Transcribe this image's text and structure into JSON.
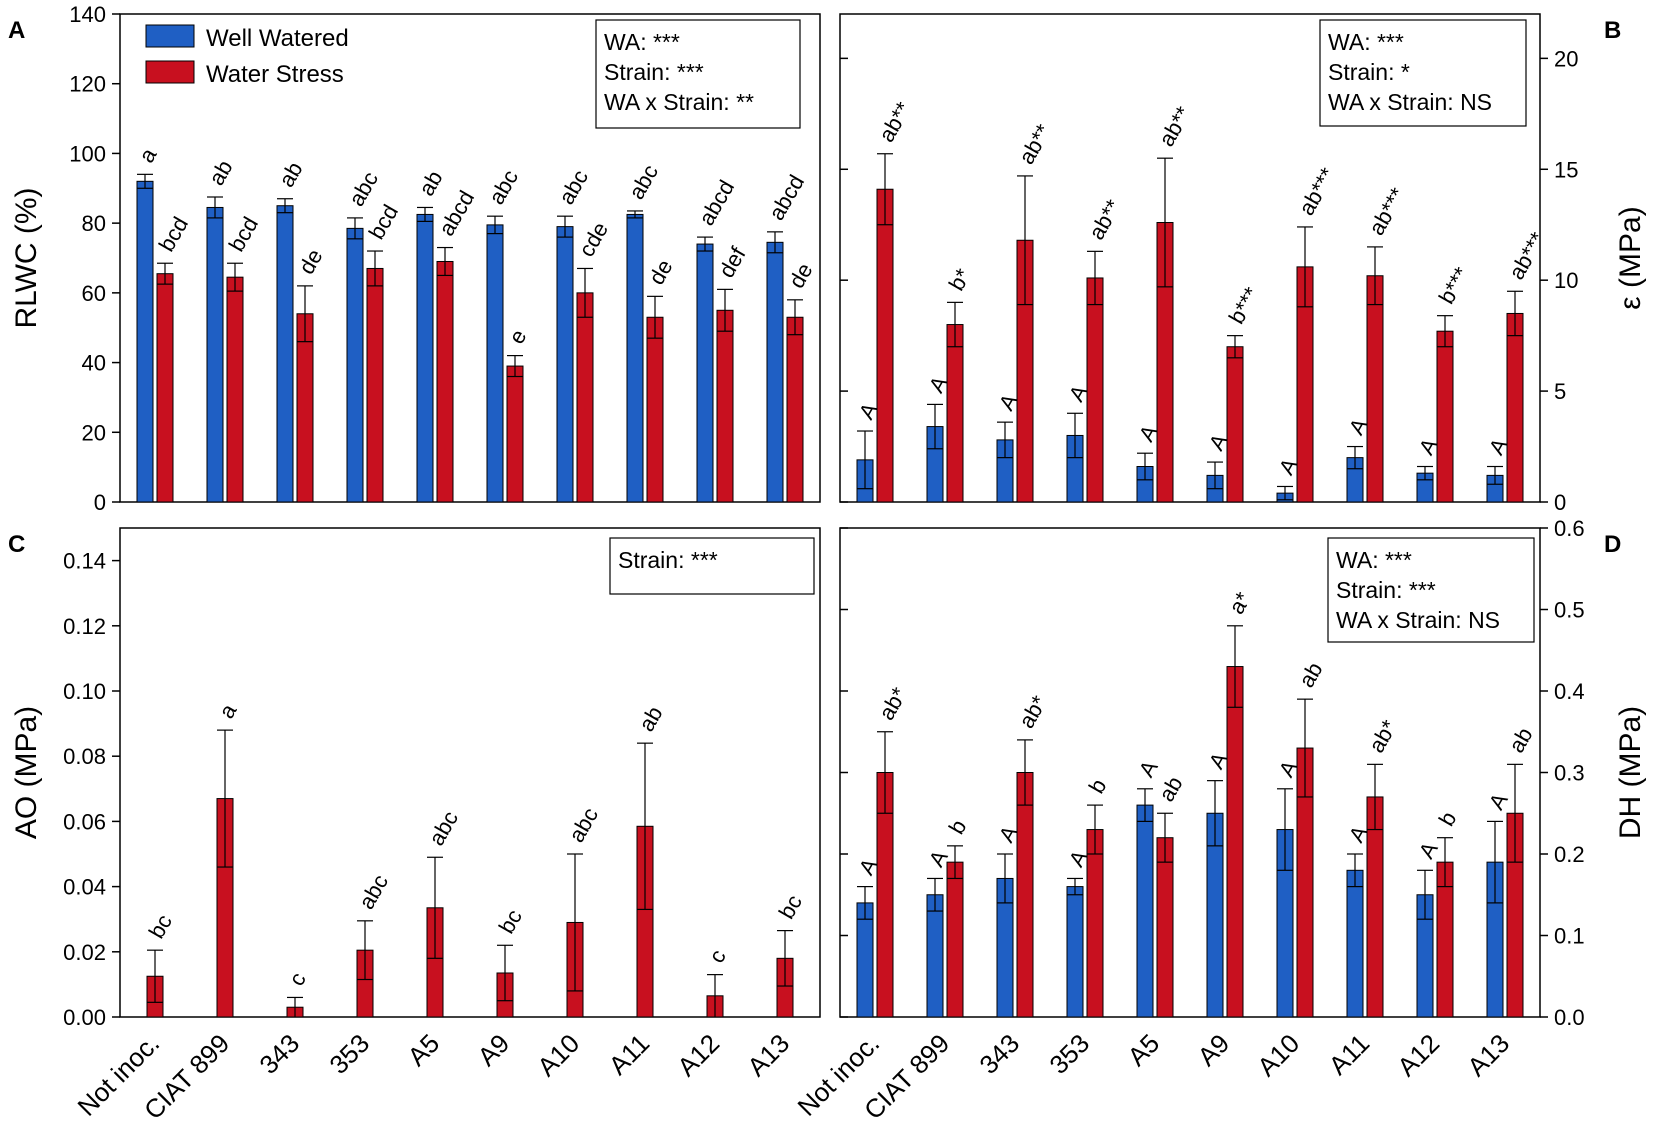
{
  "colors": {
    "well_watered": "#1f5fc4",
    "water_stress": "#c8101f",
    "axis": "#000000"
  },
  "legend": {
    "well_watered": "Well Watered",
    "water_stress": "Water Stress"
  },
  "categories": [
    "Not inoc.",
    "CIAT 899",
    "343",
    "353",
    "A5",
    "A9",
    "A10",
    "A11",
    "A12",
    "A13"
  ],
  "chart_data": [
    {
      "panel": "A",
      "type": "bar",
      "ylabel": "RLWC (%)",
      "ylim": [
        0,
        140
      ],
      "yticks": [
        0,
        20,
        40,
        60,
        80,
        100,
        120,
        140
      ],
      "tick_labels": [
        "0",
        "20",
        "40",
        "60",
        "80",
        "100",
        "120",
        "140"
      ],
      "stats": [
        "WA: ***",
        "Strain: ***",
        "WA x Strain: **"
      ],
      "series": [
        {
          "name": "Well Watered",
          "values": [
            92,
            84.5,
            85,
            78.5,
            82.5,
            79.5,
            79,
            82.5,
            74,
            74.5
          ],
          "errors": [
            2,
            3,
            2,
            3,
            2,
            2.5,
            3,
            1,
            2,
            3
          ],
          "labels": [
            "a",
            "ab",
            "ab",
            "abc",
            "ab",
            "abc",
            "abc",
            "abc",
            "abcd",
            "abcd"
          ]
        },
        {
          "name": "Water Stress",
          "values": [
            65.5,
            64.5,
            54,
            67,
            69,
            39,
            60,
            53,
            55,
            53
          ],
          "errors": [
            3,
            4,
            8,
            5,
            4,
            3,
            7,
            6,
            6,
            5
          ],
          "labels": [
            "bcd",
            "bcd",
            "de",
            "bcd",
            "abcd",
            "e",
            "cde",
            "de",
            "def",
            "de"
          ]
        }
      ]
    },
    {
      "panel": "B",
      "type": "bar",
      "ylabel": "ε (MPa)",
      "ylim": [
        0,
        22
      ],
      "yticks": [
        0,
        5,
        10,
        15,
        20
      ],
      "tick_labels": [
        "0",
        "5",
        "10",
        "15",
        "20"
      ],
      "stats": [
        "WA: ***",
        "Strain: *",
        "WA x Strain: NS"
      ],
      "series": [
        {
          "name": "Well Watered",
          "values": [
            1.9,
            3.4,
            2.8,
            3.0,
            1.6,
            1.2,
            0.4,
            2.0,
            1.3,
            1.2
          ],
          "errors": [
            1.3,
            1.0,
            0.8,
            1.0,
            0.6,
            0.6,
            0.3,
            0.5,
            0.3,
            0.4
          ],
          "labels": [
            "A",
            "A",
            "A",
            "A",
            "A",
            "A",
            "A",
            "A",
            "A",
            "A"
          ]
        },
        {
          "name": "Water Stress",
          "values": [
            14.1,
            8.0,
            11.8,
            10.1,
            12.6,
            7.0,
            10.6,
            10.2,
            7.7,
            8.5
          ],
          "errors": [
            1.6,
            1.0,
            2.9,
            1.2,
            2.9,
            0.5,
            1.8,
            1.3,
            0.7,
            1.0
          ],
          "labels": [
            "ab**",
            "b*",
            "ab**",
            "ab**",
            "ab**",
            "b***",
            "ab***",
            "ab***",
            "b***",
            "ab***"
          ]
        }
      ]
    },
    {
      "panel": "C",
      "type": "bar",
      "ylabel": "AO (MPa)",
      "ylim": [
        0,
        0.15
      ],
      "yticks": [
        0,
        0.02,
        0.04,
        0.06,
        0.08,
        0.1,
        0.12,
        0.14
      ],
      "tick_labels": [
        "0.00",
        "0.02",
        "0.04",
        "0.06",
        "0.08",
        "0.10",
        "0.12",
        "0.14"
      ],
      "stats": [
        "Strain: ***"
      ],
      "series": [
        {
          "name": "Water Stress",
          "values": [
            0.0125,
            0.067,
            0.003,
            0.0205,
            0.0335,
            0.0135,
            0.029,
            0.0585,
            0.0065,
            0.018
          ],
          "errors": [
            0.008,
            0.021,
            0.003,
            0.009,
            0.0155,
            0.0085,
            0.021,
            0.0255,
            0.0065,
            0.0085
          ],
          "labels": [
            "bc",
            "a",
            "c",
            "abc",
            "abc",
            "bc",
            "abc",
            "ab",
            "c",
            "bc"
          ]
        }
      ]
    },
    {
      "panel": "D",
      "type": "bar",
      "ylabel": "DH (MPa)",
      "ylim": [
        0,
        0.6
      ],
      "yticks": [
        0,
        0.1,
        0.2,
        0.3,
        0.4,
        0.5,
        0.6
      ],
      "tick_labels": [
        "0.0",
        "0.1",
        "0.2",
        "0.3",
        "0.4",
        "0.5",
        "0.6"
      ],
      "stats": [
        "WA: ***",
        "Strain: ***",
        "WA x Strain: NS"
      ],
      "series": [
        {
          "name": "Well Watered",
          "values": [
            0.14,
            0.15,
            0.17,
            0.16,
            0.26,
            0.25,
            0.23,
            0.18,
            0.15,
            0.19
          ],
          "errors": [
            0.02,
            0.02,
            0.03,
            0.01,
            0.02,
            0.04,
            0.05,
            0.02,
            0.03,
            0.05
          ],
          "labels": [
            "A",
            "A",
            "A",
            "A",
            "A",
            "A",
            "A",
            "A",
            "A",
            "A"
          ]
        },
        {
          "name": "Water Stress",
          "values": [
            0.3,
            0.19,
            0.3,
            0.23,
            0.22,
            0.43,
            0.33,
            0.27,
            0.19,
            0.25
          ],
          "errors": [
            0.05,
            0.02,
            0.04,
            0.03,
            0.03,
            0.05,
            0.06,
            0.04,
            0.03,
            0.06
          ],
          "labels": [
            "ab*",
            "b",
            "ab*",
            "b",
            "ab",
            "a*",
            "ab",
            "ab*",
            "b",
            "ab"
          ]
        }
      ]
    }
  ]
}
